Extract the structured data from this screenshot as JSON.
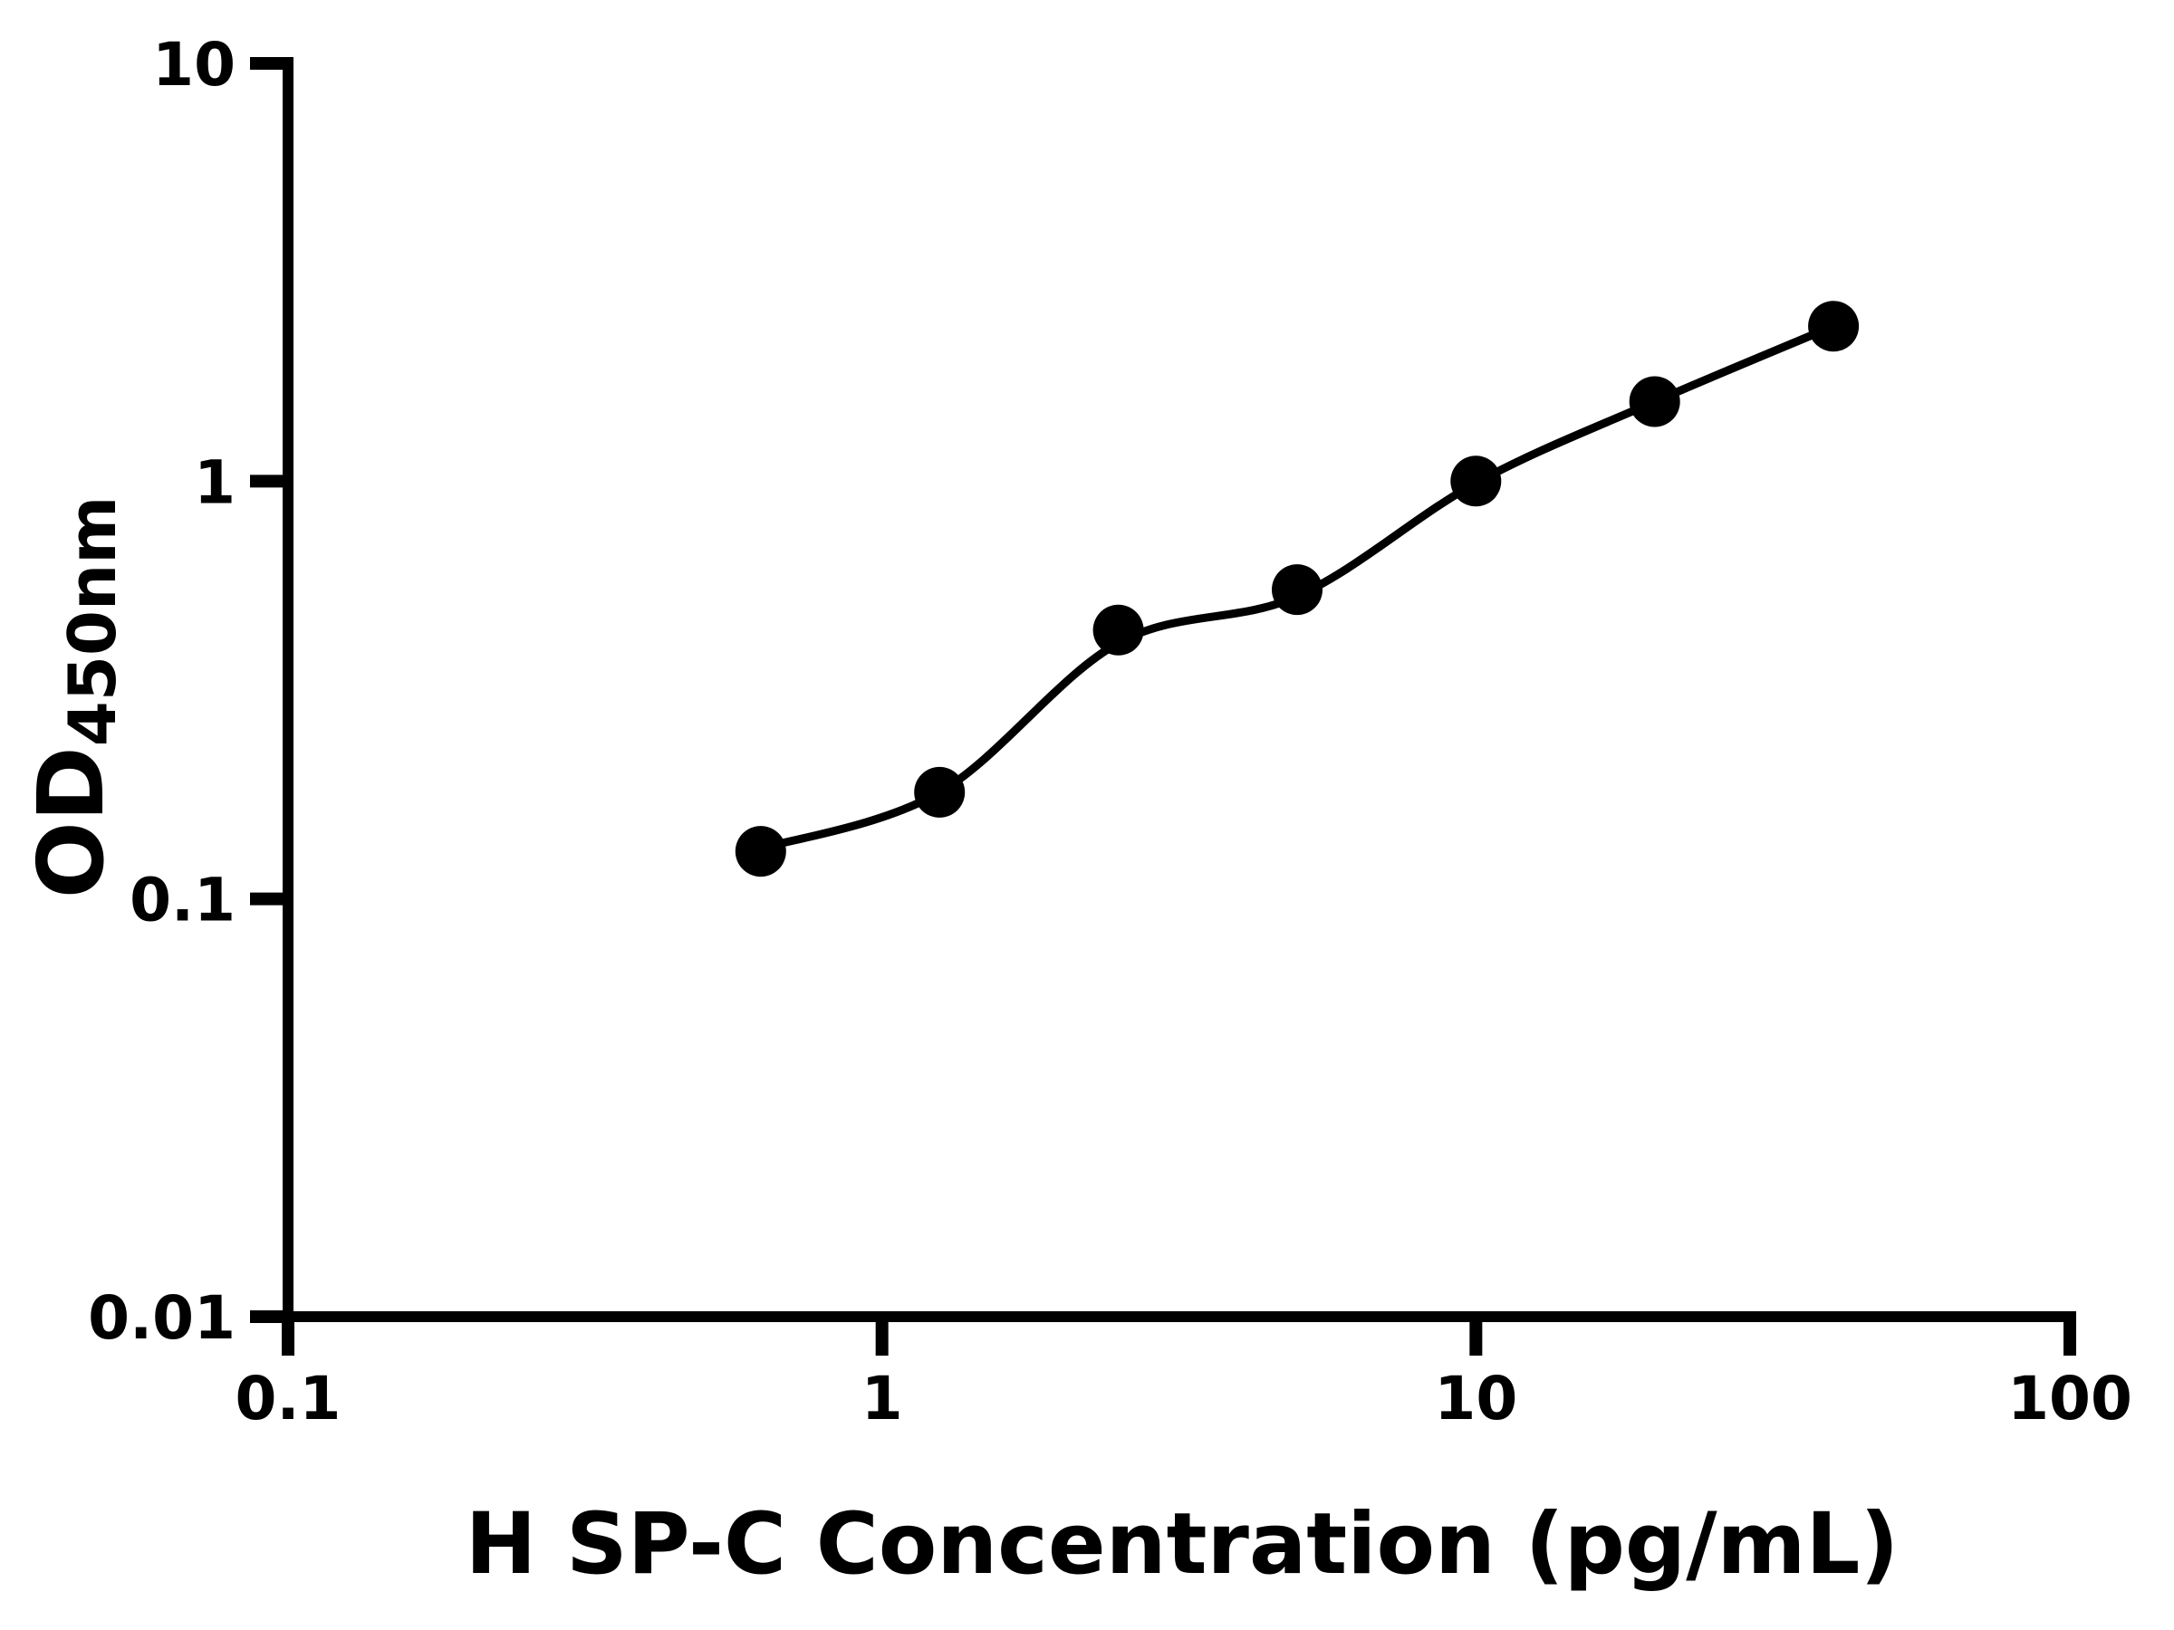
{
  "page": {
    "background_color": "#ffffff",
    "foreground_color": "#000000"
  },
  "chart_data": {
    "type": "scatter",
    "subtype": "elisa-standard-curve-with-fit-line",
    "title": "",
    "xlabel": "H SP-C Concentration (pg/mL)",
    "ylabel": {
      "main": "OD",
      "subscript": "450nm"
    },
    "x_scale": "log10",
    "y_scale": "log10",
    "xlim": [
      0.1,
      100
    ],
    "ylim": [
      0.01,
      10
    ],
    "grid": false,
    "legend": null,
    "x_ticks": [
      {
        "v": 0.1,
        "label": "0.1"
      },
      {
        "v": 1,
        "label": "1"
      },
      {
        "v": 10,
        "label": "10"
      },
      {
        "v": 100,
        "label": "100"
      }
    ],
    "y_ticks": [
      {
        "v": 0.01,
        "label": "0.01"
      },
      {
        "v": 0.1,
        "label": "0.1"
      },
      {
        "v": 1,
        "label": "1"
      },
      {
        "v": 10,
        "label": "10"
      }
    ],
    "series": [
      {
        "name": "H SP-C standard points",
        "marker": "filled-circle",
        "color": "#000000",
        "points": [
          {
            "x": 0.625,
            "y": 0.13
          },
          {
            "x": 1.25,
            "y": 0.18
          },
          {
            "x": 2.5,
            "y": 0.44
          },
          {
            "x": 5,
            "y": 0.55
          },
          {
            "x": 10,
            "y": 1.0
          },
          {
            "x": 20,
            "y": 1.55
          },
          {
            "x": 40,
            "y": 2.35
          }
        ]
      }
    ],
    "fit_curve": {
      "name": "fitted standard curve line",
      "color": "#000000",
      "x": [
        0.625,
        1.25,
        2.5,
        5,
        10,
        20,
        40
      ],
      "y": [
        0.132,
        0.18,
        0.41,
        0.53,
        0.99,
        1.55,
        2.35
      ]
    }
  }
}
